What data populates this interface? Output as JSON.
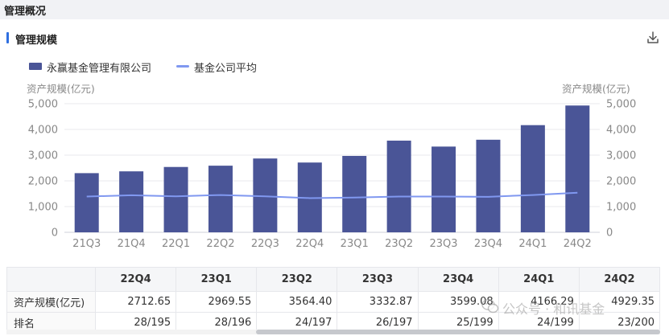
{
  "header": {
    "title": "管理概况"
  },
  "section": {
    "title": "管理规模",
    "download_icon": "download-icon"
  },
  "chart_data": {
    "type": "bar",
    "legend_position": "top-left",
    "grid": true,
    "categories": [
      "21Q3",
      "21Q4",
      "22Q1",
      "22Q2",
      "22Q3",
      "22Q4",
      "23Q1",
      "23Q2",
      "23Q3",
      "23Q4",
      "24Q1",
      "24Q2"
    ],
    "series": [
      {
        "name": "永赢基金管理有限公司",
        "type": "bar",
        "color": "#4a5597",
        "values": [
          2300,
          2370,
          2540,
          2590,
          2870,
          2712.65,
          2969.55,
          3564.4,
          3332.87,
          3599.08,
          4166.29,
          4929.35
        ]
      },
      {
        "name": "基金公司平均",
        "type": "line",
        "color": "#8098f0",
        "values": [
          1390,
          1440,
          1400,
          1450,
          1400,
          1330,
          1350,
          1390,
          1390,
          1380,
          1450,
          1540
        ]
      }
    ],
    "ylabel_left": "资产规模(亿元)",
    "ylabel_right": "资产规模(亿元)",
    "ylim": [
      0,
      5000
    ],
    "yticks": [
      "0",
      "1,000",
      "2,000",
      "3,000",
      "4,000",
      "5,000"
    ]
  },
  "table": {
    "columns": [
      "22Q4",
      "23Q1",
      "23Q2",
      "23Q3",
      "23Q4",
      "24Q1",
      "24Q2"
    ],
    "rows": [
      {
        "label": "资产规模(亿元)",
        "values": [
          "2712.65",
          "2969.55",
          "3564.40",
          "3332.87",
          "3599.08",
          "4166.29",
          "4929.35"
        ]
      },
      {
        "label": "排名",
        "values": [
          "28/195",
          "28/196",
          "24/197",
          "26/197",
          "25/199",
          "24/199",
          "23/200"
        ]
      }
    ]
  },
  "watermark": {
    "text": "公众号 · 和讯基金",
    "icon": "wechat-icon"
  }
}
